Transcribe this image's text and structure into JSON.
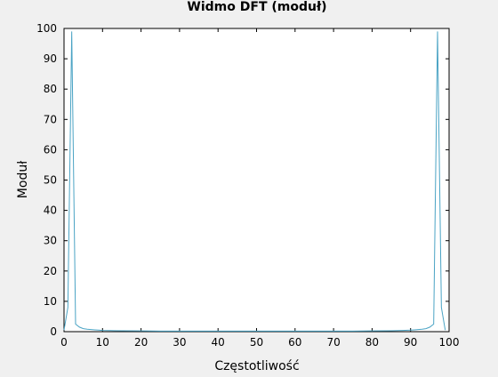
{
  "chart_data": {
    "type": "line",
    "title": "Widmo DFT (moduł)",
    "xlabel": "Częstotliwość",
    "ylabel": "Moduł",
    "xlim": [
      0,
      100
    ],
    "ylim": [
      0,
      100
    ],
    "xticks": [
      0,
      10,
      20,
      30,
      40,
      50,
      60,
      70,
      80,
      90,
      100
    ],
    "yticks": [
      0,
      10,
      20,
      30,
      40,
      50,
      60,
      70,
      80,
      90,
      100
    ],
    "grid": false,
    "series": [
      {
        "color": "#4aa3c4",
        "x": [
          0,
          1,
          2,
          3,
          4,
          5,
          6,
          7,
          8,
          9,
          10,
          12,
          15,
          20,
          25,
          30,
          35,
          40,
          45,
          50,
          55,
          60,
          65,
          70,
          75,
          80,
          85,
          88,
          90,
          91,
          92,
          93,
          94,
          95,
          96,
          97,
          98,
          99
        ],
        "y": [
          0.5,
          8,
          99,
          2.5,
          1.5,
          1.0,
          0.8,
          0.7,
          0.6,
          0.5,
          0.4,
          0.35,
          0.3,
          0.25,
          0.2,
          0.2,
          0.2,
          0.2,
          0.2,
          0.2,
          0.2,
          0.2,
          0.2,
          0.2,
          0.2,
          0.25,
          0.3,
          0.4,
          0.5,
          0.6,
          0.7,
          0.8,
          1.0,
          1.5,
          2.5,
          99,
          8,
          0.5
        ]
      }
    ]
  }
}
